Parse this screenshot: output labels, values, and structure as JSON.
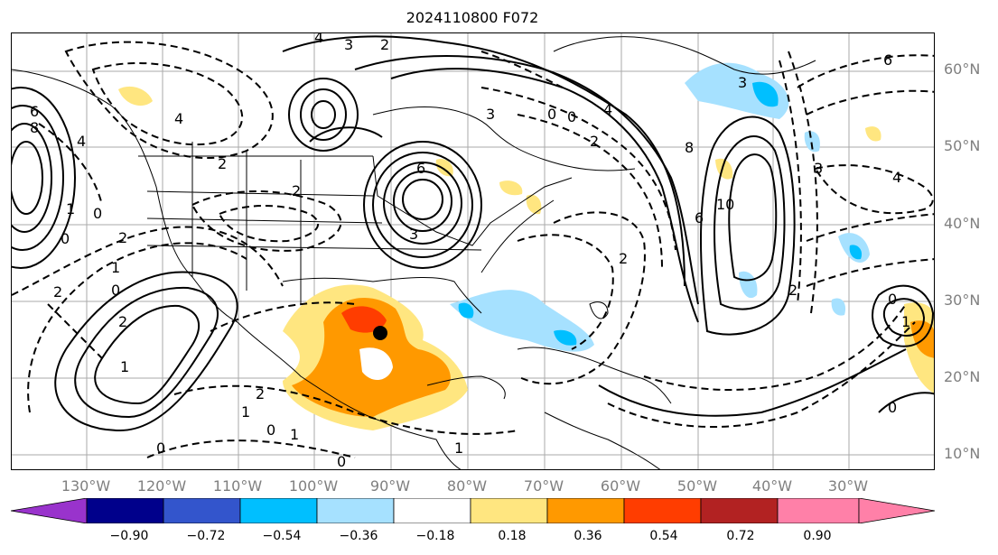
{
  "title": "2024110800 F072",
  "latitude_labels": [
    "60°N",
    "50°N",
    "40°N",
    "30°N",
    "20°N",
    "10°N"
  ],
  "longitude_labels": [
    "130°W",
    "120°W",
    "110°W",
    "100°W",
    "90°W",
    "80°W",
    "70°W",
    "60°W",
    "50°W",
    "40°W",
    "30°W"
  ],
  "contour_labels": [
    "4",
    "3",
    "2",
    "6",
    "4",
    "8",
    "4",
    "2",
    "2",
    "0",
    "1",
    "2",
    "3",
    "6",
    "0",
    "4",
    "3",
    "2",
    "0",
    "3",
    "8",
    "10",
    "6",
    "2",
    "4",
    "3",
    "0",
    "1",
    "1",
    "2",
    "2",
    "2",
    "1",
    "0",
    "1",
    "0",
    "0",
    "1",
    "2",
    "0",
    "1",
    "0",
    "0",
    "6"
  ],
  "colorbar": {
    "tick_labels": [
      "−0.90",
      "−0.72",
      "−0.54",
      "−0.36",
      "−0.18",
      "0.18",
      "0.36",
      "0.54",
      "0.72",
      "0.90"
    ],
    "colors": [
      "#9933cc",
      "#00008b",
      "#3355cc",
      "#00bfff",
      "#a6e1ff",
      "#ffffff",
      "#ffe680",
      "#ff9900",
      "#ff3d00",
      "#b22222",
      "#ff80a8"
    ]
  },
  "marker": {
    "lon": -91,
    "lat": 26
  }
}
